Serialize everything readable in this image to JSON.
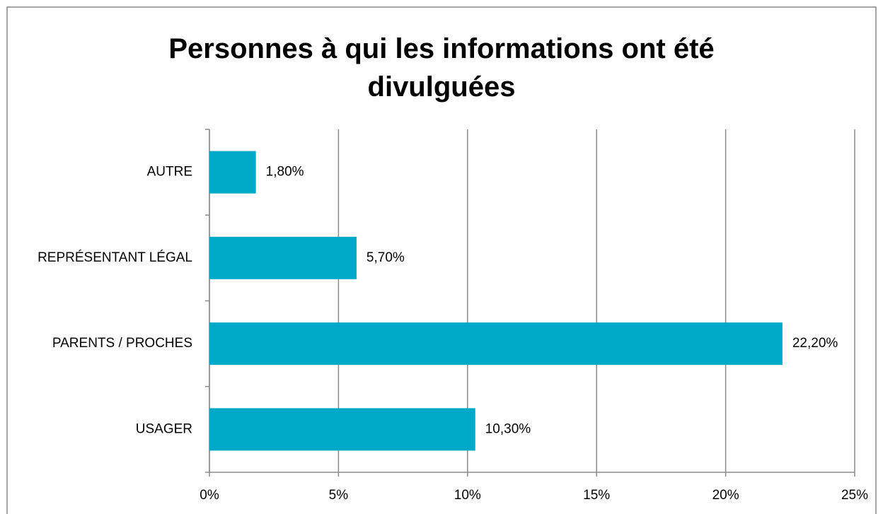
{
  "chart_data": {
    "type": "hbar",
    "title": "Personnes à qui les informations ont été divulguées",
    "categories": [
      "AUTRE",
      "REPRÉSENTANT LÉGAL",
      "PARENTS / PROCHES",
      "USAGER"
    ],
    "values": [
      1.8,
      5.7,
      22.2,
      10.3
    ],
    "value_labels": [
      "1,80%",
      "5,70%",
      "22,20%",
      "10,30%"
    ],
    "color": "#00a9c7",
    "xlim": [
      0,
      25
    ],
    "xticks": [
      {
        "value": 0,
        "label": "0%"
      },
      {
        "value": 5,
        "label": "5%"
      },
      {
        "value": 10,
        "label": "10%"
      },
      {
        "value": 15,
        "label": "15%"
      },
      {
        "value": 20,
        "label": "20%"
      },
      {
        "value": 25,
        "label": "25%"
      }
    ],
    "grid": true
  }
}
